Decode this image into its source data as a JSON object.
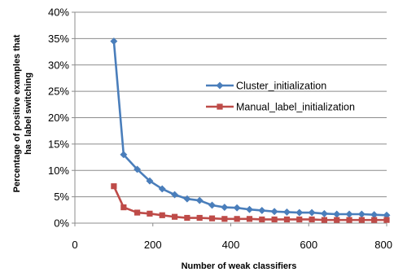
{
  "chart_data": {
    "type": "line",
    "xlabel": "Number of weak classifiers",
    "ylabel": "Percentage of positive examples that has label switching",
    "ylabel_lines": [
      "Percentage of positive examples that",
      "has label switching"
    ],
    "xlim": [
      0,
      800
    ],
    "ylim": [
      0,
      40
    ],
    "x_ticks": [
      0,
      200,
      400,
      600,
      800
    ],
    "x_tick_labels": [
      "0",
      "200",
      "400",
      "600",
      "800"
    ],
    "y_ticks": [
      0,
      5,
      10,
      15,
      20,
      25,
      30,
      35,
      40
    ],
    "y_tick_labels": [
      "0%",
      "5%",
      "10%",
      "15%",
      "20%",
      "25%",
      "30%",
      "35%",
      "40%"
    ],
    "grid": "horizontal",
    "legend_position": "center-right",
    "series": [
      {
        "name": "Cluster_initialization",
        "color": "#4a7ebb",
        "marker": "diamond",
        "x": [
          100,
          125,
          160,
          192,
          224,
          256,
          288,
          320,
          352,
          384,
          416,
          448,
          480,
          512,
          544,
          576,
          608,
          640,
          672,
          704,
          736,
          768,
          800
        ],
        "y": [
          34.5,
          13.0,
          10.2,
          8.0,
          6.5,
          5.4,
          4.6,
          4.3,
          3.4,
          3.0,
          2.9,
          2.6,
          2.4,
          2.2,
          2.1,
          2.0,
          2.0,
          1.8,
          1.7,
          1.7,
          1.7,
          1.6,
          1.5
        ]
      },
      {
        "name": "Manual_label_initialization",
        "color": "#be4b48",
        "marker": "square",
        "x": [
          100,
          125,
          160,
          192,
          224,
          256,
          288,
          320,
          352,
          384,
          416,
          448,
          480,
          512,
          544,
          576,
          608,
          640,
          672,
          704,
          736,
          768,
          800
        ],
        "y": [
          7.0,
          3.0,
          2.0,
          1.8,
          1.5,
          1.2,
          1.0,
          1.0,
          0.9,
          0.8,
          0.8,
          0.8,
          0.7,
          0.7,
          0.7,
          0.7,
          0.7,
          0.6,
          0.6,
          0.6,
          0.6,
          0.6,
          0.6
        ]
      }
    ]
  }
}
